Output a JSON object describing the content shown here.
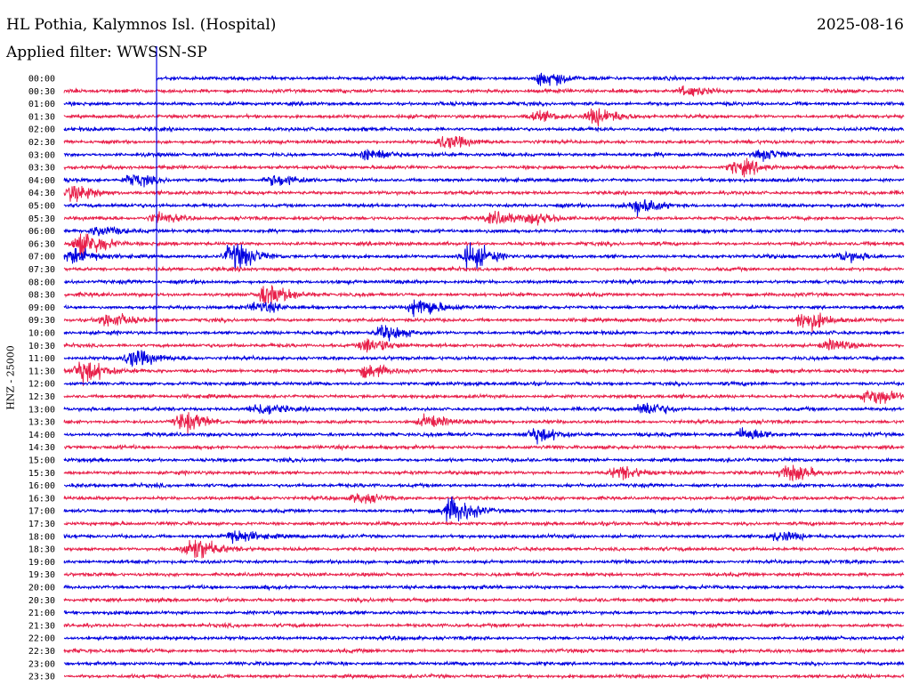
{
  "header": {
    "station": "HL Pothia, Kalymnos Isl. (Hospital)",
    "date": "2025-08-16",
    "filter": "Applied filter: WWSSN-SP"
  },
  "chart_data": {
    "type": "line",
    "title": "HL Pothia, Kalymnos Isl. (Hospital)",
    "subtitle": "Applied filter: WWSSN-SP",
    "date": "2025-08-16",
    "ylabel": "HNZ - 25000",
    "xlabel": "",
    "trace_colors": [
      "#0000e0",
      "#e8204a"
    ],
    "start_marker_row": 0,
    "row_labels": [
      "00:00",
      "00:30",
      "01:00",
      "01:30",
      "02:00",
      "02:30",
      "03:00",
      "03:30",
      "04:00",
      "04:30",
      "05:00",
      "05:30",
      "06:00",
      "06:30",
      "07:00",
      "07:30",
      "08:00",
      "08:30",
      "09:00",
      "09:30",
      "10:00",
      "10:30",
      "11:00",
      "11:30",
      "12:00",
      "12:30",
      "13:00",
      "13:30",
      "14:00",
      "14:30",
      "15:00",
      "15:30",
      "16:00",
      "16:30",
      "17:00",
      "17:30",
      "18:00",
      "18:30",
      "19:00",
      "19:30",
      "20:00",
      "20:30",
      "21:00",
      "21:30",
      "22:00",
      "22:30",
      "23:00",
      "23:30"
    ],
    "events": [
      {
        "row": 0,
        "x": 0.57,
        "amp": 1.4
      },
      {
        "row": 1,
        "x": 0.74,
        "amp": 1.0
      },
      {
        "row": 3,
        "x": 0.63,
        "amp": 1.6
      },
      {
        "row": 3,
        "x": 0.56,
        "amp": 0.9
      },
      {
        "row": 5,
        "x": 0.45,
        "amp": 1.3
      },
      {
        "row": 6,
        "x": 0.36,
        "amp": 1.1
      },
      {
        "row": 6,
        "x": 0.83,
        "amp": 1.0
      },
      {
        "row": 7,
        "x": 0.8,
        "amp": 1.5
      },
      {
        "row": 8,
        "x": 0.08,
        "amp": 1.2
      },
      {
        "row": 8,
        "x": 0.25,
        "amp": 1.0
      },
      {
        "row": 9,
        "x": 0.01,
        "amp": 1.7
      },
      {
        "row": 10,
        "x": 0.68,
        "amp": 1.6
      },
      {
        "row": 11,
        "x": 0.11,
        "amp": 1.0
      },
      {
        "row": 11,
        "x": 0.51,
        "amp": 1.2
      },
      {
        "row": 11,
        "x": 0.56,
        "amp": 1.0
      },
      {
        "row": 12,
        "x": 0.04,
        "amp": 1.0
      },
      {
        "row": 13,
        "x": 0.02,
        "amp": 2.4
      },
      {
        "row": 14,
        "x": 0.01,
        "amp": 1.5
      },
      {
        "row": 14,
        "x": 0.2,
        "amp": 2.6
      },
      {
        "row": 14,
        "x": 0.48,
        "amp": 2.4
      },
      {
        "row": 14,
        "x": 0.93,
        "amp": 1.0
      },
      {
        "row": 17,
        "x": 0.24,
        "amp": 2.0
      },
      {
        "row": 18,
        "x": 0.42,
        "amp": 1.8
      },
      {
        "row": 18,
        "x": 0.23,
        "amp": 0.9
      },
      {
        "row": 19,
        "x": 0.05,
        "amp": 1.4
      },
      {
        "row": 19,
        "x": 0.88,
        "amp": 1.9
      },
      {
        "row": 20,
        "x": 0.38,
        "amp": 1.3
      },
      {
        "row": 21,
        "x": 0.36,
        "amp": 1.5
      },
      {
        "row": 21,
        "x": 0.91,
        "amp": 1.0
      },
      {
        "row": 22,
        "x": 0.08,
        "amp": 1.6
      },
      {
        "row": 23,
        "x": 0.02,
        "amp": 2.2
      },
      {
        "row": 23,
        "x": 0.36,
        "amp": 1.2
      },
      {
        "row": 25,
        "x": 0.96,
        "amp": 1.5
      },
      {
        "row": 26,
        "x": 0.23,
        "amp": 1.2
      },
      {
        "row": 26,
        "x": 0.69,
        "amp": 1.3
      },
      {
        "row": 27,
        "x": 0.14,
        "amp": 1.8
      },
      {
        "row": 27,
        "x": 0.43,
        "amp": 1.1
      },
      {
        "row": 28,
        "x": 0.56,
        "amp": 1.4
      },
      {
        "row": 28,
        "x": 0.81,
        "amp": 1.2
      },
      {
        "row": 31,
        "x": 0.66,
        "amp": 1.2
      },
      {
        "row": 31,
        "x": 0.86,
        "amp": 1.7
      },
      {
        "row": 33,
        "x": 0.35,
        "amp": 0.9
      },
      {
        "row": 34,
        "x": 0.46,
        "amp": 2.5
      },
      {
        "row": 36,
        "x": 0.2,
        "amp": 1.3
      },
      {
        "row": 37,
        "x": 0.15,
        "amp": 2.3
      },
      {
        "row": 36,
        "x": 0.85,
        "amp": 0.8
      }
    ]
  }
}
